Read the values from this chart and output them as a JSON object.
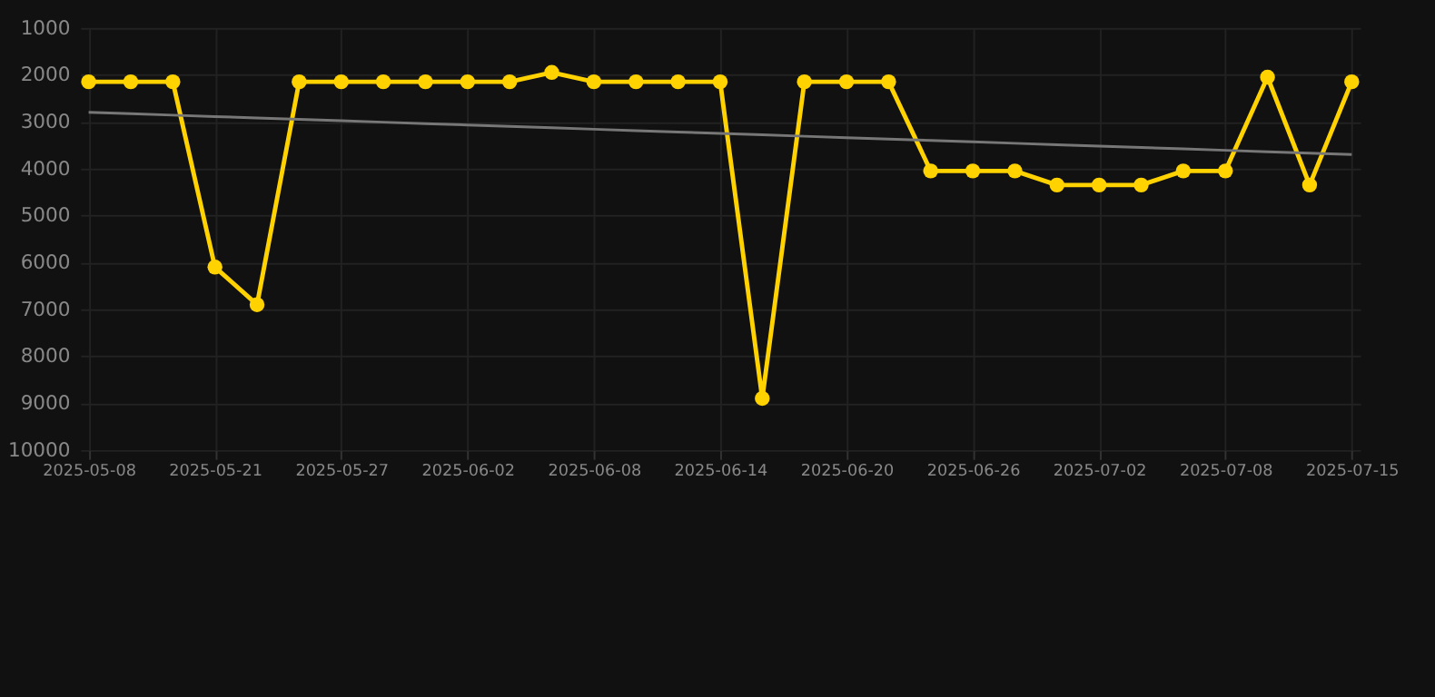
{
  "chart_data": {
    "type": "line",
    "categories": [
      "2025-05-08",
      null,
      null,
      "2025-05-21",
      null,
      null,
      "2025-05-27",
      null,
      null,
      "2025-06-02",
      null,
      null,
      "2025-06-08",
      null,
      null,
      "2025-06-14",
      null,
      null,
      "2025-06-20",
      null,
      null,
      "2025-06-26",
      null,
      null,
      "2025-07-02",
      null,
      null,
      "2025-07-08",
      null,
      null,
      "2025-07-15"
    ],
    "series": [
      {
        "color": "#ffd200",
        "marker": "circle",
        "values": [
          2150,
          2150,
          2150,
          6100,
          6900,
          2150,
          2150,
          2150,
          2150,
          2150,
          2150,
          1950,
          2150,
          2150,
          2150,
          2150,
          8900,
          2150,
          2150,
          2150,
          4050,
          4050,
          4050,
          4350,
          4350,
          4350,
          4050,
          4050,
          2050,
          4350,
          2150
        ]
      },
      {
        "type": "line",
        "color": "#777777",
        "marker": "none",
        "values": [
          2800,
          2830,
          2860,
          2890,
          2920,
          2950,
          2980,
          3010,
          3040,
          3070,
          3100,
          3130,
          3160,
          3190,
          3220,
          3250,
          3280,
          3310,
          3340,
          3370,
          3400,
          3430,
          3460,
          3490,
          3520,
          3550,
          3580,
          3610,
          3640,
          3670,
          3700
        ]
      }
    ],
    "ylim": [
      10000,
      1000
    ],
    "yticks": [
      1000,
      2000,
      3000,
      4000,
      5000,
      6000,
      7000,
      8000,
      9000,
      10000
    ],
    "grid": true
  }
}
